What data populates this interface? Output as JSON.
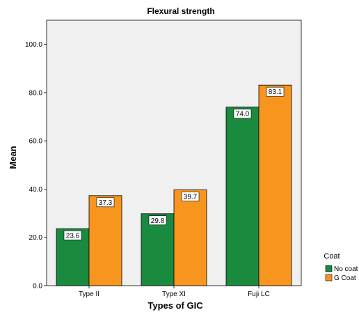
{
  "chart_data": {
    "type": "bar",
    "title": "Flexural strength",
    "xlabel": "Types of GIC",
    "ylabel": "Mean",
    "categories": [
      "Type II",
      "Type XI",
      "Fuji LC"
    ],
    "series": [
      {
        "name": "No coat",
        "values": [
          23.6,
          29.8,
          74.0
        ],
        "labels": [
          "23.6",
          "29.8",
          "74.0"
        ],
        "color": "#1a8a3f"
      },
      {
        "name": "G Coat",
        "values": [
          37.3,
          39.7,
          83.1
        ],
        "labels": [
          "37.3",
          "39.7",
          "83.1"
        ],
        "color": "#f7951e"
      }
    ],
    "ylim": [
      0,
      110
    ],
    "yticks": [
      0,
      20,
      40,
      60,
      80,
      100
    ],
    "ytick_labels": [
      "0.0",
      "20.0",
      "40.0",
      "60.0",
      "80.0",
      "100.0"
    ],
    "grid": false,
    "legend": {
      "title": "Coat",
      "position": "right"
    },
    "plot_background": "#f0f0f0"
  }
}
